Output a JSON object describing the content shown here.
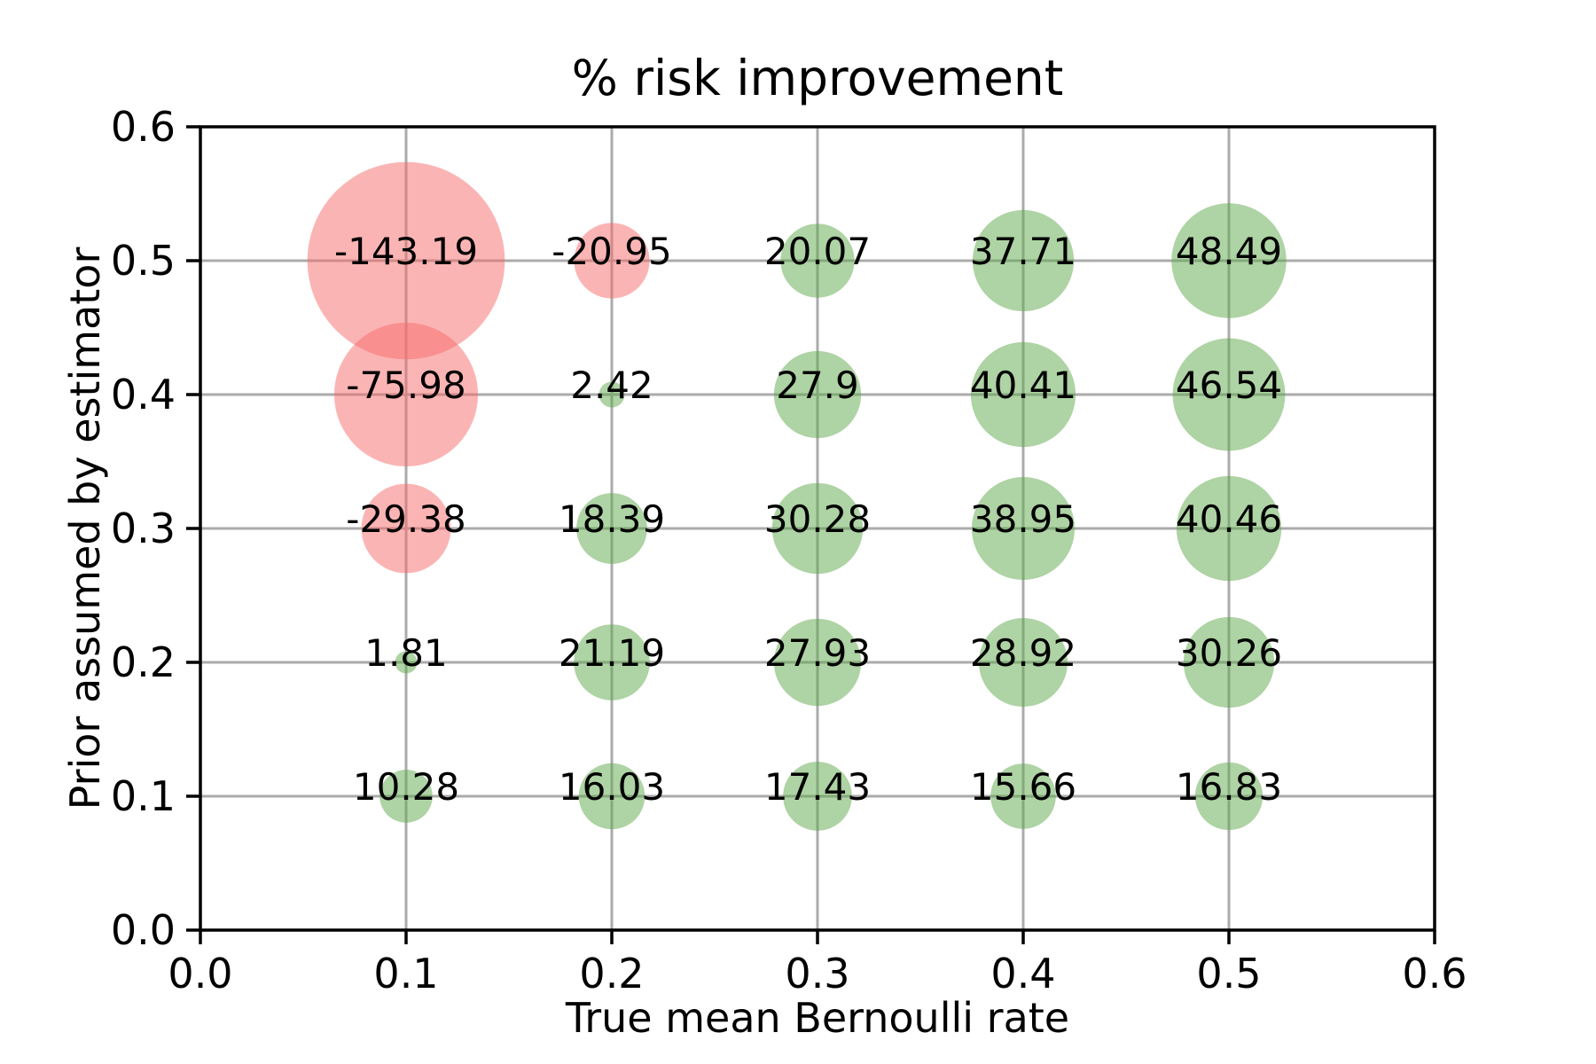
{
  "chart_data": {
    "type": "scatter",
    "title": "% risk improvement",
    "xlabel": "True mean Bernoulli rate",
    "ylabel": "Prior assumed by estimator",
    "xlim": [
      0.0,
      0.6
    ],
    "ylim": [
      0.0,
      0.6
    ],
    "xticks": [
      "0.0",
      "0.1",
      "0.2",
      "0.3",
      "0.4",
      "0.5",
      "0.6"
    ],
    "yticks": [
      "0.0",
      "0.1",
      "0.2",
      "0.3",
      "0.4",
      "0.5",
      "0.6"
    ],
    "grid": true,
    "legend": false,
    "bubble_size_note": "bubble area proportional to |value|",
    "points": [
      {
        "x": 0.1,
        "y": 0.5,
        "value": -143.19,
        "label": "-143.19"
      },
      {
        "x": 0.2,
        "y": 0.5,
        "value": -20.95,
        "label": "-20.95"
      },
      {
        "x": 0.3,
        "y": 0.5,
        "value": 20.07,
        "label": "20.07"
      },
      {
        "x": 0.4,
        "y": 0.5,
        "value": 37.71,
        "label": "37.71"
      },
      {
        "x": 0.5,
        "y": 0.5,
        "value": 48.49,
        "label": "48.49"
      },
      {
        "x": 0.1,
        "y": 0.4,
        "value": -75.98,
        "label": "-75.98"
      },
      {
        "x": 0.2,
        "y": 0.4,
        "value": 2.42,
        "label": "2.42"
      },
      {
        "x": 0.3,
        "y": 0.4,
        "value": 27.9,
        "label": "27.9"
      },
      {
        "x": 0.4,
        "y": 0.4,
        "value": 40.41,
        "label": "40.41"
      },
      {
        "x": 0.5,
        "y": 0.4,
        "value": 46.54,
        "label": "46.54"
      },
      {
        "x": 0.1,
        "y": 0.3,
        "value": -29.38,
        "label": "-29.38"
      },
      {
        "x": 0.2,
        "y": 0.3,
        "value": 18.39,
        "label": "18.39"
      },
      {
        "x": 0.3,
        "y": 0.3,
        "value": 30.28,
        "label": "30.28"
      },
      {
        "x": 0.4,
        "y": 0.3,
        "value": 38.95,
        "label": "38.95"
      },
      {
        "x": 0.5,
        "y": 0.3,
        "value": 40.46,
        "label": "40.46"
      },
      {
        "x": 0.1,
        "y": 0.2,
        "value": 1.81,
        "label": "1.81"
      },
      {
        "x": 0.2,
        "y": 0.2,
        "value": 21.19,
        "label": "21.19"
      },
      {
        "x": 0.3,
        "y": 0.2,
        "value": 27.93,
        "label": "27.93"
      },
      {
        "x": 0.4,
        "y": 0.2,
        "value": 28.92,
        "label": "28.92"
      },
      {
        "x": 0.5,
        "y": 0.2,
        "value": 30.26,
        "label": "30.26"
      },
      {
        "x": 0.1,
        "y": 0.1,
        "value": 10.28,
        "label": "10.28"
      },
      {
        "x": 0.2,
        "y": 0.1,
        "value": 16.03,
        "label": "16.03"
      },
      {
        "x": 0.3,
        "y": 0.1,
        "value": 17.43,
        "label": "17.43"
      },
      {
        "x": 0.4,
        "y": 0.1,
        "value": 15.66,
        "label": "15.66"
      },
      {
        "x": 0.5,
        "y": 0.1,
        "value": 16.83,
        "label": "16.83"
      }
    ],
    "colors": {
      "positive_fill": "rgba(93,167,73,0.5)",
      "negative_fill": "rgba(247,105,105,0.5)",
      "positive_fill_flat": "#aed3a4",
      "negative_fill_flat": "#fbb4b4",
      "gridline": "#ababab",
      "spine": "#000000",
      "text": "#000000",
      "background": "#ffffff"
    }
  }
}
